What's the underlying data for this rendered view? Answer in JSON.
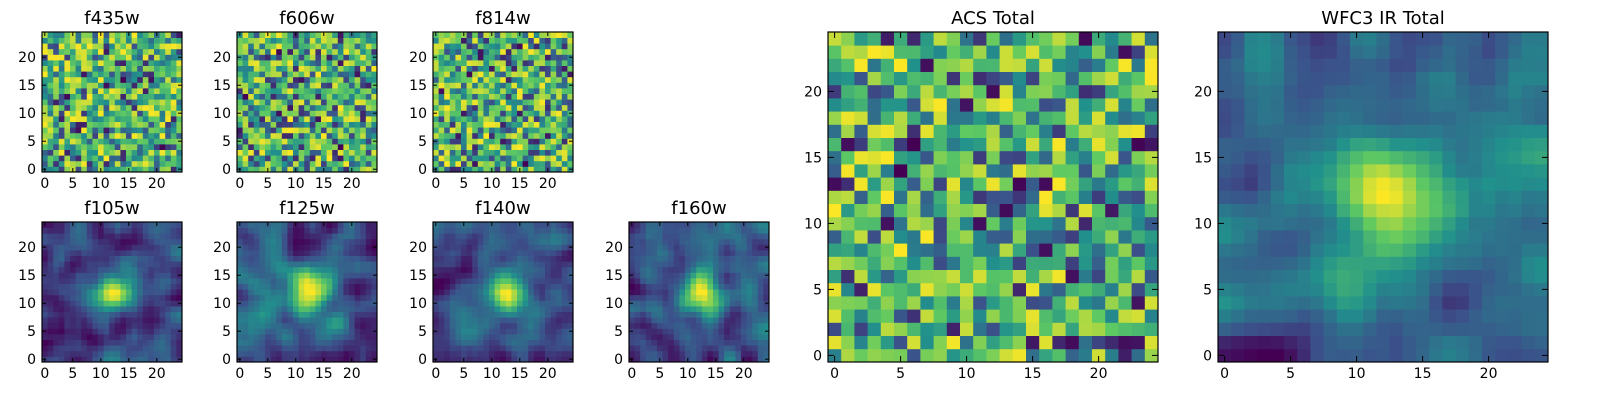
{
  "colors": {
    "background": "#ffffff",
    "frame": "#000000",
    "colormap": [
      "#440154",
      "#3b528b",
      "#21918c",
      "#5ec962",
      "#fde725"
    ]
  },
  "chart_data": [
    {
      "type": "heatmap",
      "title": "f435w",
      "grid": [
        25,
        25
      ],
      "xlim": [
        -0.5,
        24.5
      ],
      "ylim": [
        -0.5,
        24.5
      ],
      "xticks": [
        0,
        5,
        10,
        15,
        20
      ],
      "yticks": [
        0,
        5,
        10,
        15,
        20
      ],
      "xticklabels": [
        "0",
        "5",
        "10",
        "15",
        "20"
      ],
      "yticklabels": [
        "0",
        "5",
        "10",
        "15",
        "20"
      ],
      "pattern": "noise",
      "seed": 11
    },
    {
      "type": "heatmap",
      "title": "f606w",
      "grid": [
        25,
        25
      ],
      "xlim": [
        -0.5,
        24.5
      ],
      "ylim": [
        -0.5,
        24.5
      ],
      "xticks": [
        0,
        5,
        10,
        15,
        20
      ],
      "yticks": [
        0,
        5,
        10,
        15,
        20
      ],
      "xticklabels": [
        "0",
        "5",
        "10",
        "15",
        "20"
      ],
      "yticklabels": [
        "0",
        "5",
        "10",
        "15",
        "20"
      ],
      "pattern": "noise",
      "seed": 23
    },
    {
      "type": "heatmap",
      "title": "f814w",
      "grid": [
        25,
        25
      ],
      "xlim": [
        -0.5,
        24.5
      ],
      "ylim": [
        -0.5,
        24.5
      ],
      "xticks": [
        0,
        5,
        10,
        15,
        20
      ],
      "yticks": [
        0,
        5,
        10,
        15,
        20
      ],
      "xticklabels": [
        "0",
        "5",
        "10",
        "15",
        "20"
      ],
      "yticklabels": [
        "0",
        "5",
        "10",
        "15",
        "20"
      ],
      "pattern": "noise",
      "seed": 37
    },
    {
      "type": "heatmap",
      "title": "f105w",
      "grid": [
        25,
        25
      ],
      "xlim": [
        -0.5,
        24.5
      ],
      "ylim": [
        -0.5,
        24.5
      ],
      "xticks": [
        0,
        5,
        10,
        15,
        20
      ],
      "yticks": [
        0,
        5,
        10,
        15,
        20
      ],
      "xticklabels": [
        "0",
        "5",
        "10",
        "15",
        "20"
      ],
      "yticklabels": [
        "0",
        "5",
        "10",
        "15",
        "20"
      ],
      "pattern": "smooth",
      "seed": 41
    },
    {
      "type": "heatmap",
      "title": "f125w",
      "grid": [
        25,
        25
      ],
      "xlim": [
        -0.5,
        24.5
      ],
      "ylim": [
        -0.5,
        24.5
      ],
      "xticks": [
        0,
        5,
        10,
        15,
        20
      ],
      "yticks": [
        0,
        5,
        10,
        15,
        20
      ],
      "xticklabels": [
        "0",
        "5",
        "10",
        "15",
        "20"
      ],
      "yticklabels": [
        "0",
        "5",
        "10",
        "15",
        "20"
      ],
      "pattern": "smooth",
      "seed": 53
    },
    {
      "type": "heatmap",
      "title": "f140w",
      "grid": [
        25,
        25
      ],
      "xlim": [
        -0.5,
        24.5
      ],
      "ylim": [
        -0.5,
        24.5
      ],
      "xticks": [
        0,
        5,
        10,
        15,
        20
      ],
      "yticks": [
        0,
        5,
        10,
        15,
        20
      ],
      "xticklabels": [
        "0",
        "5",
        "10",
        "15",
        "20"
      ],
      "yticklabels": [
        "0",
        "5",
        "10",
        "15",
        "20"
      ],
      "pattern": "smooth",
      "seed": 67
    },
    {
      "type": "heatmap",
      "title": "f160w",
      "grid": [
        25,
        25
      ],
      "xlim": [
        -0.5,
        24.5
      ],
      "ylim": [
        -0.5,
        24.5
      ],
      "xticks": [
        0,
        5,
        10,
        15,
        20
      ],
      "yticks": [
        0,
        5,
        10,
        15,
        20
      ],
      "xticklabels": [
        "0",
        "5",
        "10",
        "15",
        "20"
      ],
      "yticklabels": [
        "0",
        "5",
        "10",
        "15",
        "20"
      ],
      "pattern": "smooth",
      "seed": 79
    },
    {
      "type": "heatmap",
      "title": "ACS Total",
      "grid": [
        25,
        25
      ],
      "xlim": [
        -0.5,
        24.5
      ],
      "ylim": [
        -0.5,
        24.5
      ],
      "xticks": [
        0,
        5,
        10,
        15,
        20
      ],
      "yticks": [
        0,
        5,
        10,
        15,
        20
      ],
      "xticklabels": [
        "0",
        "5",
        "10",
        "15",
        "20"
      ],
      "yticklabels": [
        "0",
        "5",
        "10",
        "15",
        "20"
      ],
      "pattern": "noise",
      "seed": 83
    },
    {
      "type": "heatmap",
      "title": "WFC3 IR Total",
      "grid": [
        25,
        25
      ],
      "xlim": [
        -0.5,
        24.5
      ],
      "ylim": [
        -0.5,
        24.5
      ],
      "xticks": [
        0,
        5,
        10,
        15,
        20
      ],
      "yticks": [
        0,
        5,
        10,
        15,
        20
      ],
      "xticklabels": [
        "0",
        "5",
        "10",
        "15",
        "20"
      ],
      "yticklabels": [
        "0",
        "5",
        "10",
        "15",
        "20"
      ],
      "pattern": "smooth",
      "seed": 97
    }
  ]
}
